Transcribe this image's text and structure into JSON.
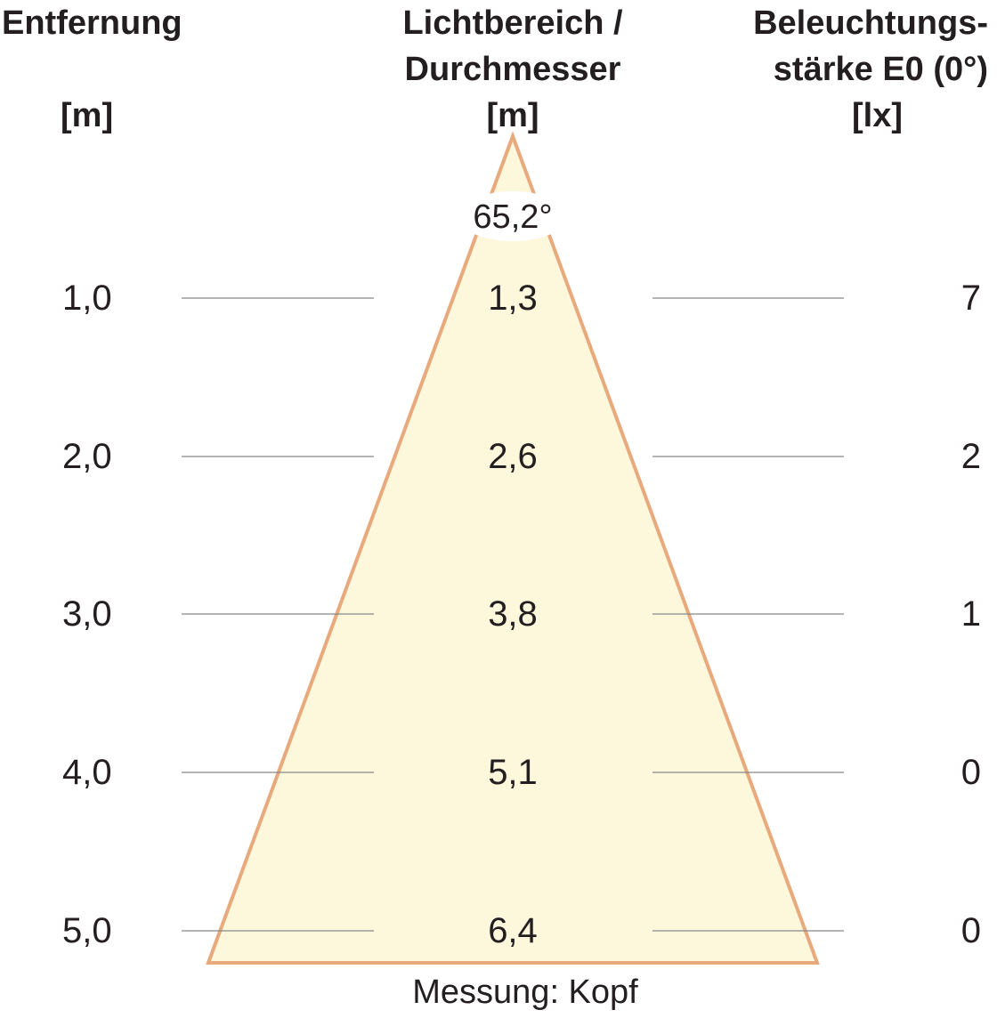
{
  "headers": {
    "distance": {
      "label": "Entfernung",
      "unit": "[m]"
    },
    "diameter": {
      "line1": "Lichtbereich /",
      "line2": "Durchmesser",
      "unit": "[m]"
    },
    "illuminance": {
      "line1": "Beleuchtungs-",
      "line2": "stärke E0 (0°)",
      "unit": "[lx]"
    }
  },
  "beam_angle": "65,2°",
  "footer": "Messung: Kopf",
  "colors": {
    "beam_fill": "#fdf7dc",
    "beam_edge": "#e8a97c",
    "text": "#231f20",
    "guide_line": "#888888"
  },
  "rows": [
    {
      "distance": "1,0",
      "diameter": "1,3",
      "illuminance": "7"
    },
    {
      "distance": "2,0",
      "diameter": "2,6",
      "illuminance": "2"
    },
    {
      "distance": "3,0",
      "diameter": "3,8",
      "illuminance": "1"
    },
    {
      "distance": "4,0",
      "diameter": "5,1",
      "illuminance": "0"
    },
    {
      "distance": "5,0",
      "diameter": "6,4",
      "illuminance": "0"
    }
  ]
}
